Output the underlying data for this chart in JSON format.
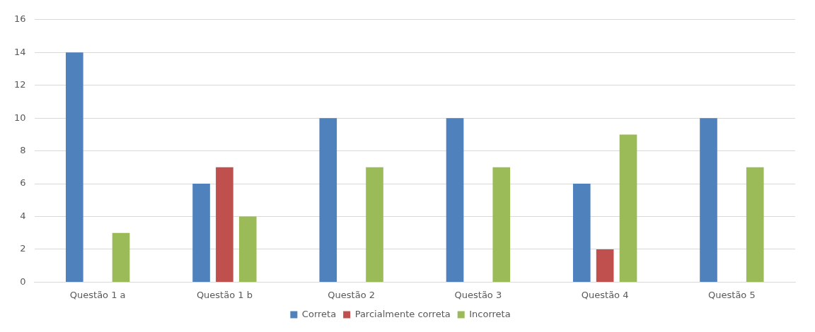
{
  "chart_data": {
    "type": "bar",
    "categories": [
      "Questão 1 a",
      "Questão 1 b",
      "Questão 2",
      "Questão 3",
      "Questão 4",
      "Questão 5"
    ],
    "series": [
      {
        "name": "Correta",
        "color": "#4f81bd",
        "values": [
          14,
          6,
          10,
          10,
          6,
          10
        ]
      },
      {
        "name": "Parcialmente correta",
        "color": "#c0504d",
        "values": [
          0,
          7,
          0,
          0,
          2,
          0
        ]
      },
      {
        "name": "Incorreta",
        "color": "#9bbb59",
        "values": [
          3,
          4,
          7,
          7,
          9,
          7
        ]
      }
    ],
    "ylim": [
      0,
      16
    ],
    "yticks": [
      0,
      2,
      4,
      6,
      8,
      10,
      12,
      14,
      16
    ],
    "grid": "y",
    "legend": "bottom"
  }
}
